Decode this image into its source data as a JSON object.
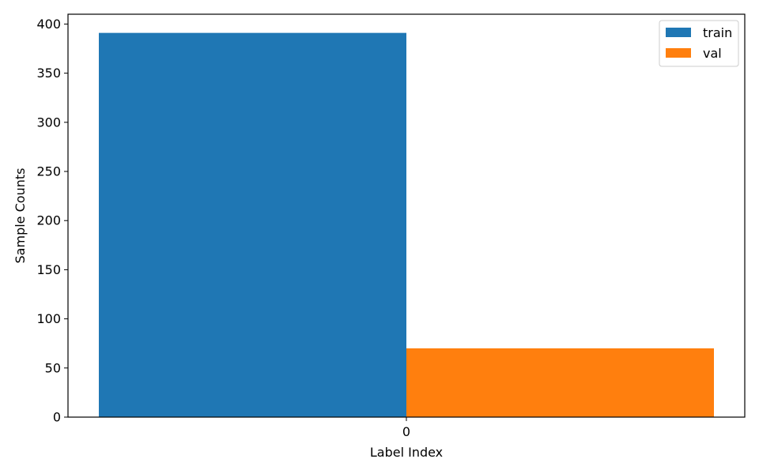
{
  "chart_data": {
    "type": "bar",
    "categories": [
      "0"
    ],
    "series": [
      {
        "name": "train",
        "values": [
          391
        ],
        "color": "#1f77b4"
      },
      {
        "name": "val",
        "values": [
          70
        ],
        "color": "#ff7f0e"
      }
    ],
    "xlabel": "Label Index",
    "ylabel": "Sample Counts",
    "ylim": [
      0,
      410
    ],
    "yticks": [
      0,
      50,
      100,
      150,
      200,
      250,
      300,
      350,
      400
    ],
    "grid": false,
    "legend_position": "top-right"
  }
}
